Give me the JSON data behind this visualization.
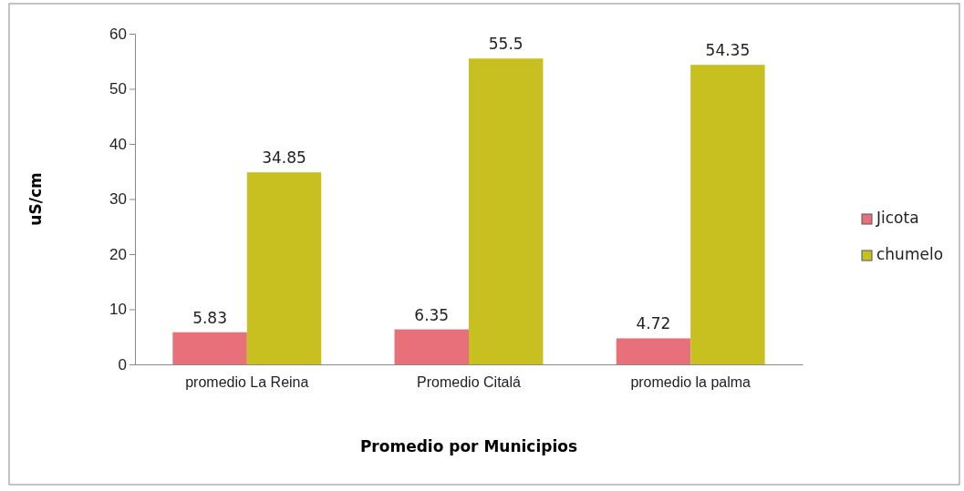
{
  "chart_data": {
    "type": "bar",
    "xlabel": "Promedio por Municipios",
    "ylabel": "uS/cm",
    "categories": [
      "promedio La Reina",
      "Promedio Citalá",
      "promedio la palma"
    ],
    "series": [
      {
        "name": "Jicota",
        "color": "#e8707a",
        "values": [
          5.83,
          6.35,
          4.72
        ]
      },
      {
        "name": "chumelo",
        "color": "#c8c020",
        "values": [
          34.85,
          55.5,
          54.35
        ]
      }
    ],
    "ylim": [
      0,
      60
    ],
    "yticks": [
      0,
      10,
      20,
      30,
      40,
      50,
      60
    ],
    "data_labels": true,
    "legend": "right",
    "grid": false
  }
}
